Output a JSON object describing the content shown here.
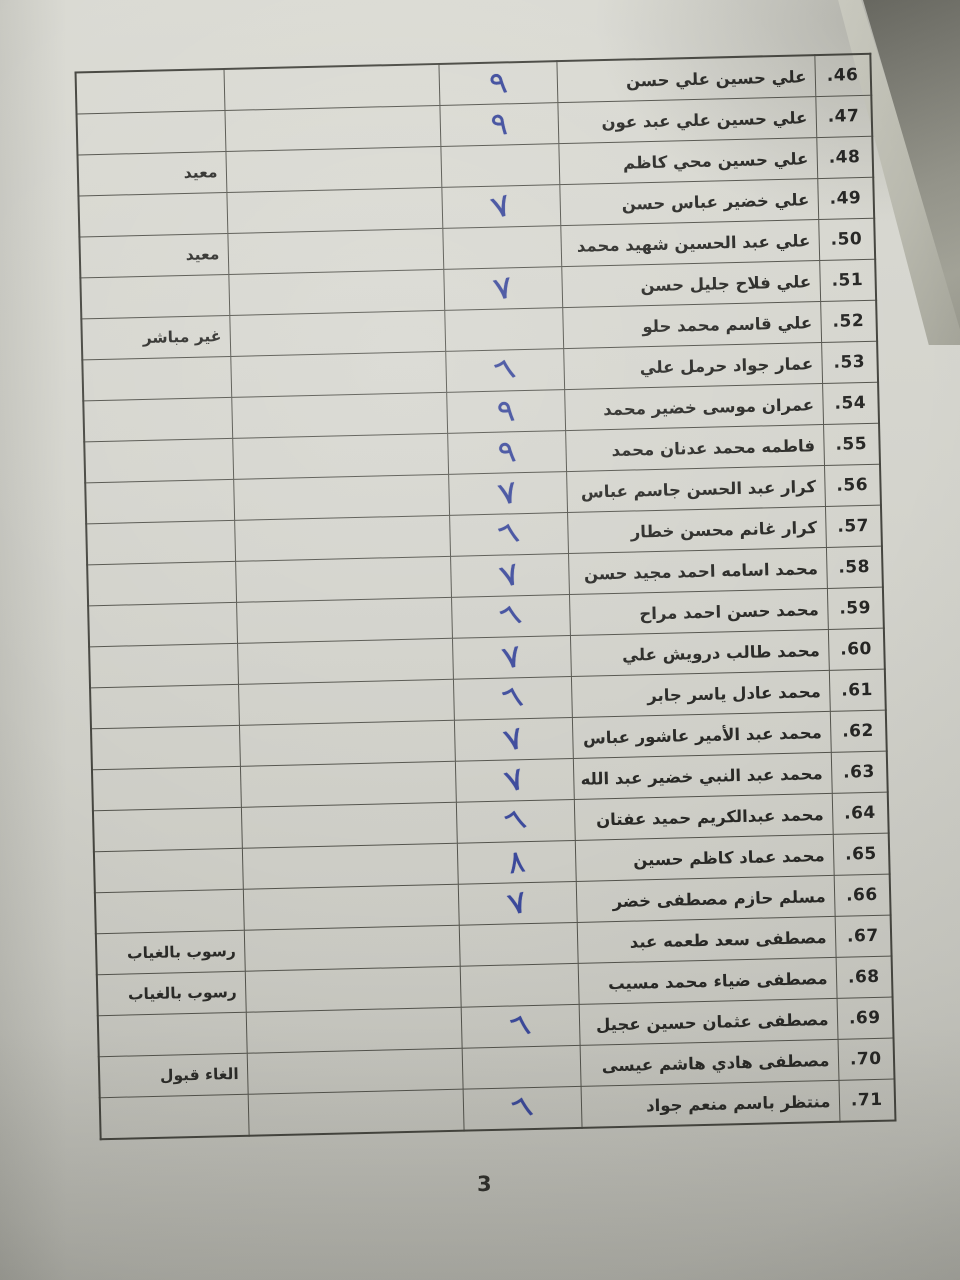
{
  "document": {
    "page_number": "3",
    "ink_color": "#3b499b",
    "table": {
      "rows": [
        {
          "number": ".46",
          "name": "علي حسين علي حسن",
          "mark": "٩",
          "status": ""
        },
        {
          "number": ".47",
          "name": "علي حسين علي عبد عون",
          "mark": "٩",
          "status": ""
        },
        {
          "number": ".48",
          "name": "علي حسين محي كاظم",
          "mark": "",
          "status": "معيد"
        },
        {
          "number": ".49",
          "name": "علي خضير عباس حسن",
          "mark": "٧",
          "status": ""
        },
        {
          "number": ".50",
          "name": "علي عبد الحسين شهيد محمد",
          "mark": "",
          "status": "معيد"
        },
        {
          "number": ".51",
          "name": "علي فلاح جليل حسن",
          "mark": "٧",
          "status": ""
        },
        {
          "number": ".52",
          "name": "علي قاسم محمد حلو",
          "mark": "",
          "status": "غير مباشر"
        },
        {
          "number": ".53",
          "name": "عمار جواد حرمل علي",
          "mark": "٦",
          "status": ""
        },
        {
          "number": ".54",
          "name": "عمران موسى خضير محمد",
          "mark": "٩",
          "status": ""
        },
        {
          "number": ".55",
          "name": "فاطمه محمد عدنان محمد",
          "mark": "٩",
          "status": ""
        },
        {
          "number": ".56",
          "name": "كرار عبد الحسن جاسم عباس",
          "mark": "٧",
          "status": ""
        },
        {
          "number": ".57",
          "name": "كرار غانم محسن خطار",
          "mark": "٦",
          "status": ""
        },
        {
          "number": ".58",
          "name": "محمد اسامه احمد مجيد حسن",
          "mark": "٧",
          "status": ""
        },
        {
          "number": ".59",
          "name": "محمد حسن احمد مراح",
          "mark": "٦",
          "status": ""
        },
        {
          "number": ".60",
          "name": "محمد طالب درويش علي",
          "mark": "٧",
          "status": ""
        },
        {
          "number": ".61",
          "name": "محمد عادل ياسر جابر",
          "mark": "٦",
          "status": ""
        },
        {
          "number": ".62",
          "name": "محمد عبد الأمير عاشور عباس",
          "mark": "٧",
          "status": ""
        },
        {
          "number": ".63",
          "name": "محمد عبد النبي خضير عبد الله",
          "mark": "٧",
          "status": ""
        },
        {
          "number": ".64",
          "name": "محمد عبدالكريم حميد عفتان",
          "mark": "٦",
          "status": ""
        },
        {
          "number": ".65",
          "name": "محمد عماد كاظم حسين",
          "mark": "٨",
          "status": ""
        },
        {
          "number": ".66",
          "name": "مسلم حازم مصطفى خضر",
          "mark": "٧",
          "status": ""
        },
        {
          "number": ".67",
          "name": "مصطفى سعد طعمه عبد",
          "mark": "",
          "status": "رسوب بالغياب"
        },
        {
          "number": ".68",
          "name": "مصطفى ضياء محمد مسيب",
          "mark": "",
          "status": "رسوب بالغياب"
        },
        {
          "number": ".69",
          "name": "مصطفى عثمان حسين عجيل",
          "mark": "٦",
          "status": ""
        },
        {
          "number": ".70",
          "name": "مصطفى هادي هاشم عيسى",
          "mark": "",
          "status": "الغاء قبول"
        },
        {
          "number": ".71",
          "name": "منتظر باسم منعم جواد",
          "mark": "٦",
          "status": ""
        }
      ]
    }
  }
}
